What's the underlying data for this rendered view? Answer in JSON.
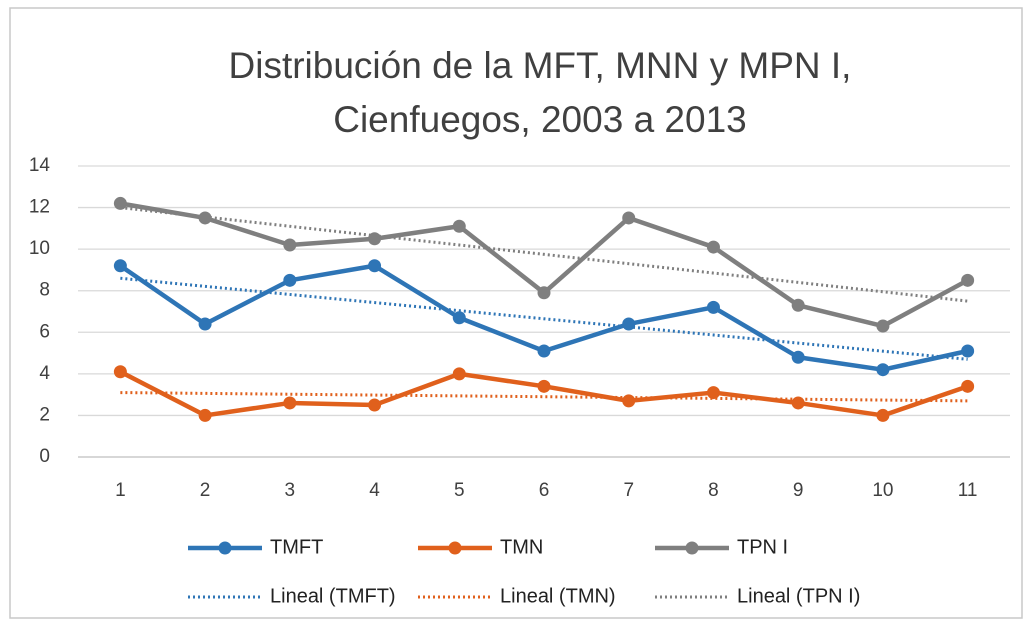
{
  "chart_data": {
    "type": "line",
    "title": [
      "Distribución de la MFT, MNN y MPN I,",
      "Cienfuegos, 2003 a 2013"
    ],
    "categories": [
      1,
      2,
      3,
      4,
      5,
      6,
      7,
      8,
      9,
      10,
      11
    ],
    "series": [
      {
        "name": "TMFT",
        "color": "#2e75b6",
        "values": [
          9.2,
          6.4,
          8.5,
          9.2,
          6.7,
          5.1,
          6.4,
          7.2,
          4.8,
          4.2,
          5.1
        ]
      },
      {
        "name": "TMN",
        "color": "#e0601c",
        "values": [
          4.1,
          2.0,
          2.6,
          2.5,
          4.0,
          3.4,
          2.7,
          3.1,
          2.6,
          2.0,
          3.4
        ]
      },
      {
        "name": "TPN I",
        "color": "#7f7f7f",
        "values": [
          12.2,
          11.5,
          10.2,
          10.5,
          11.1,
          7.9,
          11.5,
          10.1,
          7.3,
          6.3,
          8.5
        ]
      }
    ],
    "trendlines": [
      {
        "name": "Lineal (TMFT)",
        "color": "#2e75b6",
        "x": [
          1,
          11
        ],
        "values": [
          8.6,
          4.7
        ]
      },
      {
        "name": "Lineal (TMN)",
        "color": "#e0601c",
        "x": [
          1,
          11
        ],
        "values": [
          3.1,
          2.7
        ]
      },
      {
        "name": "Lineal (TPN I)",
        "color": "#7f7f7f",
        "x": [
          1,
          11
        ],
        "values": [
          12.0,
          7.5
        ]
      }
    ],
    "ylim": [
      0,
      14
    ],
    "yticks": [
      0,
      2,
      4,
      6,
      8,
      10,
      12,
      14
    ],
    "grid": true,
    "legend": "bottom"
  }
}
